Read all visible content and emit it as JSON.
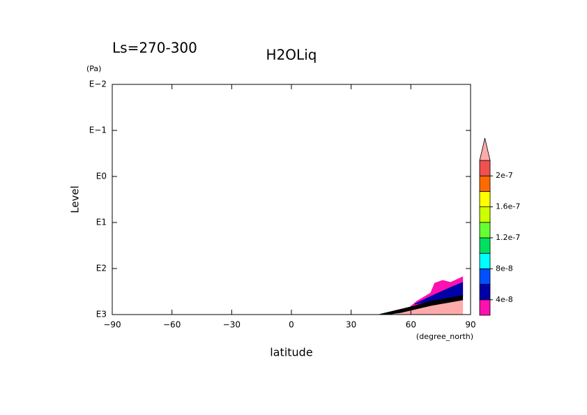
{
  "chart_data": {
    "type": "contour",
    "title": "H2OLiq",
    "subtitle": "Ls=270-300",
    "x_label": "latitude",
    "x_unit": "(degree_north)",
    "y_label": "Level",
    "y_unit": "(Pa)",
    "xlim": [
      -90,
      90
    ],
    "xticks": [
      {
        "value": -90,
        "label": "−90"
      },
      {
        "value": -60,
        "label": "−60"
      },
      {
        "value": -30,
        "label": "−30"
      },
      0,
      30,
      60,
      90
    ],
    "ylim": [
      0.01,
      1000
    ],
    "y_log": true,
    "y_inverted": true,
    "yticks": [
      {
        "value": 0.01,
        "label": "E−2"
      },
      {
        "value": 0.1,
        "label": "E−1"
      },
      {
        "value": 1,
        "label": "E0"
      },
      {
        "value": 10,
        "label": "E1"
      },
      {
        "value": 100,
        "label": "E2"
      },
      {
        "value": 1000,
        "label": "E3"
      }
    ],
    "regions": [
      {
        "color": "#ff10b0",
        "lat": [
          55,
          63,
          70,
          72,
          76,
          80,
          86,
          86,
          70,
          60
        ],
        "p": [
          1000,
          515,
          339,
          208,
          181,
          201,
          152,
          389,
          515,
          800
        ]
      },
      {
        "color": "#0000a8",
        "lat": [
          62,
          70,
          80,
          86,
          86,
          70
        ],
        "p": [
          593,
          404,
          257,
          201,
          389,
          515
        ]
      },
      {
        "color": "#ffaaaa",
        "lat": [
          52,
          60,
          70,
          86,
          86
        ],
        "p": [
          1000,
          811,
          635,
          479,
          1000
        ]
      },
      {
        "color": "#000000",
        "lat": [
          44,
          60,
          70,
          86,
          86,
          70,
          55,
          48
        ],
        "p": [
          1000,
          681,
          515,
          389,
          479,
          635,
          901,
          1000
        ]
      }
    ],
    "colorbar": {
      "levels": [
        2e-08,
        4e-08,
        6e-08,
        8e-08,
        1e-07,
        1.2e-07,
        1.4e-07,
        1.6e-07,
        1.8e-07,
        2e-07,
        2.2e-07
      ],
      "colors": [
        "#ff10b0",
        "#0000a8",
        "#0050ff",
        "#00ffff",
        "#00e060",
        "#66ff33",
        "#ccff00",
        "#ffff00",
        "#ff6a00",
        "#f05050"
      ],
      "over_color": "#ffaaaa",
      "ticks": [
        4e-08,
        8e-08,
        1.2e-07,
        1.6e-07,
        2e-07
      ]
    }
  }
}
